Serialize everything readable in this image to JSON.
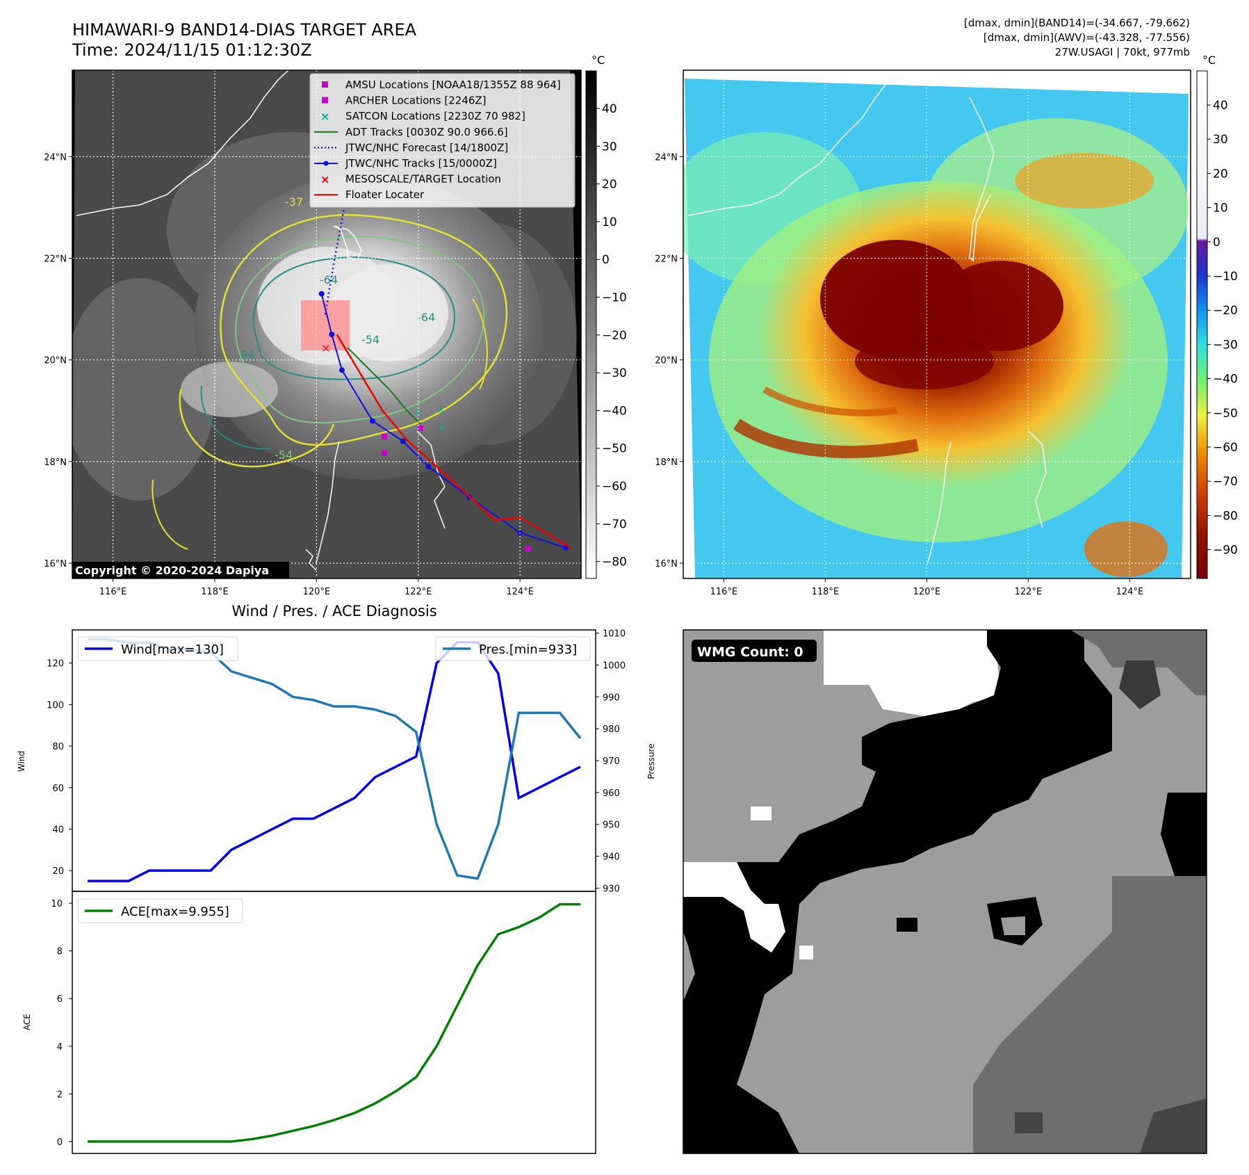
{
  "header": {
    "title": "HIMAWARI-9 BAND14-DIAS TARGET AREA",
    "time": "Time: 2024/11/15 01:12:30Z",
    "stats": [
      "[dmax, dmin](BAND14)=(-34.667, -79.662)",
      "[dmax, dmin](AWV)=(-43.328, -77.556)",
      "27W.USAGI | 70kt, 977mb"
    ]
  },
  "map": {
    "lon_ticks": [
      "116°E",
      "118°E",
      "120°E",
      "122°E",
      "124°E"
    ],
    "lat_ticks": [
      "24°N",
      "22°N",
      "20°N",
      "18°N",
      "16°N"
    ],
    "lon_range": [
      115.2,
      125.2
    ],
    "lat_range": [
      15.7,
      25.7
    ],
    "unit": "°C",
    "copyright": "Copyright © 2020-2024 Dapiya",
    "legend": [
      {
        "label": "AMSU Locations [NOAA18/1355Z 88 964]",
        "marker": "square",
        "color": "#cc00cc"
      },
      {
        "label": "ARCHER Locations [2246Z]",
        "marker": "square",
        "color": "#cc00cc"
      },
      {
        "label": "SATCON Locations [2230Z 70 982]",
        "marker": "x",
        "color": "#00b3a0"
      },
      {
        "label": "ADT Tracks [0030Z 90.0 966.6]",
        "marker": "line",
        "color": "#1a7a1a"
      },
      {
        "label": "JTWC/NHC Forecast [14/1800Z]",
        "marker": "dotted",
        "color": "#1010dd"
      },
      {
        "label": "JTWC/NHC Tracks [15/0000Z]",
        "marker": "line-dot",
        "color": "#1010dd"
      },
      {
        "label": "MESOSCALE/TARGET Location",
        "marker": "x",
        "color": "#ee0000"
      },
      {
        "label": "Floater Locater",
        "marker": "line",
        "color": "#ee0000"
      }
    ],
    "contour_labels": [
      "-64",
      "-54",
      "-64",
      "-54",
      "-64",
      "-37"
    ],
    "colorbar_gray_ticks": [
      "40",
      "30",
      "20",
      "10",
      "0",
      "−10",
      "−20",
      "−30",
      "−40",
      "−50",
      "−60",
      "−70",
      "−80"
    ],
    "colorbar_color_ticks": [
      "40",
      "30",
      "20",
      "10",
      "0",
      "−10",
      "−20",
      "−30",
      "−40",
      "−50",
      "−60",
      "−70",
      "−80",
      "−90"
    ],
    "jtwc_track": [
      [
        124.9,
        16.3
      ],
      [
        124.0,
        16.6
      ],
      [
        123.0,
        17.3
      ],
      [
        122.2,
        17.9
      ],
      [
        121.7,
        18.4
      ],
      [
        121.1,
        18.8
      ],
      [
        120.5,
        19.8
      ],
      [
        120.3,
        20.5
      ],
      [
        120.1,
        21.3
      ]
    ],
    "floater_track": [
      [
        125.0,
        16.3
      ],
      [
        124.0,
        16.9
      ],
      [
        123.5,
        16.85
      ],
      [
        122.2,
        18.05
      ],
      [
        121.8,
        18.4
      ],
      [
        121.3,
        19.0
      ],
      [
        120.4,
        20.5
      ]
    ]
  },
  "diagnosis": {
    "title": "Wind / Pres. / ACE Diagnosis",
    "wind_label": "Wind",
    "pressure_label": "Pressure",
    "ace_label": "ACE",
    "wind_legend": "Wind[max=130]",
    "pres_legend": "Pres.[min=933]",
    "ace_legend": "ACE[max=9.955]",
    "wind_ticks": [
      "20",
      "40",
      "60",
      "80",
      "100",
      "120"
    ],
    "pres_ticks": [
      "930",
      "940",
      "950",
      "960",
      "970",
      "980",
      "990",
      "1000",
      "1010"
    ],
    "ace_ticks": [
      "0",
      "2",
      "4",
      "6",
      "8",
      "10"
    ]
  },
  "wmg": {
    "label": "WMG Count: 0"
  },
  "chart_data": [
    {
      "type": "line",
      "title": "Wind / Pres. / ACE Diagnosis",
      "series": [
        {
          "name": "Wind[max=130]",
          "axis": "left",
          "color": "#0000ee",
          "x": [
            0,
            1,
            2,
            3,
            4,
            5,
            6,
            7,
            8,
            9,
            10,
            11,
            12,
            13,
            14,
            15,
            16,
            17,
            18,
            19,
            20,
            21,
            22,
            23,
            24
          ],
          "values": [
            15,
            15,
            15,
            20,
            20,
            20,
            20,
            30,
            35,
            40,
            45,
            45,
            50,
            55,
            65,
            70,
            75,
            120,
            130,
            130,
            115,
            55,
            60,
            65,
            70
          ]
        },
        {
          "name": "Pres.[min=933]",
          "axis": "right",
          "color": "#1f77b4",
          "x": [
            0,
            1,
            2,
            3,
            4,
            5,
            6,
            7,
            8,
            9,
            10,
            11,
            12,
            13,
            14,
            15,
            16,
            17,
            18,
            19,
            20,
            21,
            22,
            23,
            24
          ],
          "values": [
            1008,
            1008,
            1007,
            1007,
            1005,
            1005,
            1004,
            998,
            996,
            994,
            990,
            989,
            987,
            987,
            986,
            984,
            979,
            950,
            934,
            933,
            950,
            985,
            985,
            985,
            977
          ]
        }
      ],
      "ylabel": "Wind",
      "ylim": [
        10,
        136
      ],
      "y2label": "Pressure",
      "y2lim": [
        929,
        1011
      ],
      "xlim": [
        0,
        25
      ]
    },
    {
      "type": "line",
      "series": [
        {
          "name": "ACE[max=9.955]",
          "color": "#008000",
          "x": [
            0,
            1,
            2,
            3,
            4,
            5,
            6,
            7,
            8,
            9,
            10,
            11,
            12,
            13,
            14,
            15,
            16,
            17,
            18,
            19,
            20,
            21,
            22,
            23,
            24
          ],
          "values": [
            0,
            0,
            0,
            0,
            0,
            0,
            0,
            0,
            0.1,
            0.25,
            0.45,
            0.65,
            0.9,
            1.2,
            1.6,
            2.1,
            2.7,
            4.0,
            5.7,
            7.4,
            8.7,
            9.0,
            9.4,
            9.955,
            9.955
          ]
        }
      ],
      "ylabel": "ACE",
      "ylim": [
        -0.5,
        10.5
      ],
      "xlim": [
        0,
        25
      ]
    }
  ]
}
